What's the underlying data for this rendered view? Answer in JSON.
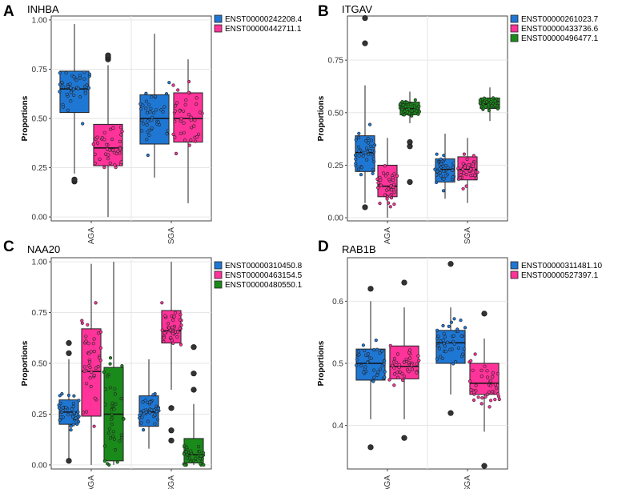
{
  "chart_data": [
    {
      "letter": "A",
      "type": "box",
      "title": "INHBA",
      "ylabel": "Proportions",
      "xlabel": "",
      "categories": [
        "AGA",
        "SGA"
      ],
      "ylim": [
        -0.02,
        1.02
      ],
      "yticks": [
        0.0,
        0.25,
        0.5,
        0.75,
        1.0
      ],
      "ytick_labels": [
        "0.00",
        "0.25",
        "0.50",
        "0.75",
        "1.00"
      ],
      "series": [
        {
          "name": "ENST00000242208.4",
          "color": "#1f77d4",
          "boxes": [
            {
              "category": "AGA",
              "q1": 0.53,
              "median": 0.65,
              "q3": 0.74,
              "whisker_low": 0.22,
              "whisker_high": 0.98,
              "outliers": [
                0.18,
                0.19
              ]
            },
            {
              "category": "SGA",
              "q1": 0.37,
              "median": 0.5,
              "q3": 0.62,
              "whisker_low": 0.2,
              "whisker_high": 0.93,
              "outliers": []
            }
          ]
        },
        {
          "name": "ENST00000442711.1",
          "color": "#ff3399",
          "boxes": [
            {
              "category": "AGA",
              "q1": 0.26,
              "median": 0.35,
              "q3": 0.47,
              "whisker_low": 0.0,
              "whisker_high": 0.77,
              "outliers": [
                0.8,
                0.81,
                0.82
              ]
            },
            {
              "category": "SGA",
              "q1": 0.38,
              "median": 0.5,
              "q3": 0.63,
              "whisker_low": 0.07,
              "whisker_high": 0.8,
              "outliers": []
            }
          ]
        }
      ]
    },
    {
      "letter": "B",
      "type": "box",
      "title": "ITGAV",
      "ylabel": "Proportions",
      "xlabel": "",
      "categories": [
        "AGA",
        "SGA"
      ],
      "ylim": [
        -0.015,
        0.96
      ],
      "yticks": [
        0.0,
        0.25,
        0.5,
        0.75
      ],
      "ytick_labels": [
        "0.00",
        "0.25",
        "0.50",
        "0.75"
      ],
      "series": [
        {
          "name": "ENST00000261023.7",
          "color": "#1f77d4",
          "boxes": [
            {
              "category": "AGA",
              "q1": 0.22,
              "median": 0.31,
              "q3": 0.39,
              "whisker_low": 0.07,
              "whisker_high": 0.63,
              "outliers": [
                0.05,
                0.83,
                0.95
              ]
            },
            {
              "category": "SGA",
              "q1": 0.17,
              "median": 0.23,
              "q3": 0.28,
              "whisker_low": 0.09,
              "whisker_high": 0.4,
              "outliers": []
            }
          ]
        },
        {
          "name": "ENST00000433736.6",
          "color": "#ff3399",
          "boxes": [
            {
              "category": "AGA",
              "q1": 0.1,
              "median": 0.15,
              "q3": 0.25,
              "whisker_low": 0.0,
              "whisker_high": 0.38,
              "outliers": []
            },
            {
              "category": "SGA",
              "q1": 0.18,
              "median": 0.23,
              "q3": 0.29,
              "whisker_low": 0.07,
              "whisker_high": 0.38,
              "outliers": []
            }
          ]
        },
        {
          "name": "ENST00000496477.1",
          "color": "#1a8a1a",
          "boxes": [
            {
              "category": "AGA",
              "q1": 0.49,
              "median": 0.52,
              "q3": 0.55,
              "whisker_low": 0.45,
              "whisker_high": 0.6,
              "outliers": [
                0.34,
                0.36,
                0.17
              ]
            },
            {
              "category": "SGA",
              "q1": 0.52,
              "median": 0.54,
              "q3": 0.57,
              "whisker_low": 0.46,
              "whisker_high": 0.62,
              "outliers": []
            }
          ]
        }
      ]
    },
    {
      "letter": "C",
      "type": "box",
      "title": "NAA20",
      "ylabel": "Proportions",
      "xlabel": "",
      "categories": [
        "AGA",
        "SGA"
      ],
      "ylim": [
        -0.02,
        1.02
      ],
      "yticks": [
        0.0,
        0.25,
        0.5,
        0.75,
        1.0
      ],
      "ytick_labels": [
        "0.00",
        "0.25",
        "0.50",
        "0.75",
        "1.00"
      ],
      "series": [
        {
          "name": "ENST00000310450.8",
          "color": "#1f77d4",
          "boxes": [
            {
              "category": "AGA",
              "q1": 0.2,
              "median": 0.26,
              "q3": 0.32,
              "whisker_low": 0.03,
              "whisker_high": 0.52,
              "outliers": [
                0.55,
                0.6,
                0.02
              ]
            },
            {
              "category": "SGA",
              "q1": 0.19,
              "median": 0.26,
              "q3": 0.34,
              "whisker_low": 0.08,
              "whisker_high": 0.52,
              "outliers": []
            }
          ]
        },
        {
          "name": "ENST00000463154.5",
          "color": "#ff3399",
          "boxes": [
            {
              "category": "AGA",
              "q1": 0.24,
              "median": 0.46,
              "q3": 0.67,
              "whisker_low": 0.0,
              "whisker_high": 0.99,
              "outliers": []
            },
            {
              "category": "SGA",
              "q1": 0.6,
              "median": 0.66,
              "q3": 0.76,
              "whisker_low": 0.37,
              "whisker_high": 1.0,
              "outliers": [
                0.12,
                0.17,
                0.28
              ]
            }
          ]
        },
        {
          "name": "ENST00000480550.1",
          "color": "#1a8a1a",
          "boxes": [
            {
              "category": "AGA",
              "q1": 0.02,
              "median": 0.25,
              "q3": 0.48,
              "whisker_low": 0.0,
              "whisker_high": 1.0,
              "outliers": []
            },
            {
              "category": "SGA",
              "q1": 0.01,
              "median": 0.05,
              "q3": 0.13,
              "whisker_low": 0.0,
              "whisker_high": 0.3,
              "outliers": [
                0.37,
                0.45,
                0.58
              ]
            }
          ]
        }
      ]
    },
    {
      "letter": "D",
      "type": "box",
      "title": "RAB1B",
      "ylabel": "Proportions",
      "xlabel": "",
      "categories": [
        "AGA",
        "SGA"
      ],
      "ylim": [
        0.33,
        0.67
      ],
      "yticks": [
        0.4,
        0.5,
        0.6
      ],
      "ytick_labels": [
        "0.4",
        "0.5",
        "0.6"
      ],
      "series": [
        {
          "name": "ENST00000311481.10",
          "color": "#1f77d4",
          "boxes": [
            {
              "category": "AGA",
              "q1": 0.473,
              "median": 0.5,
              "q3": 0.523,
              "whisker_low": 0.41,
              "whisker_high": 0.6,
              "outliers": [
                0.365,
                0.62
              ]
            },
            {
              "category": "SGA",
              "q1": 0.5,
              "median": 0.533,
              "q3": 0.553,
              "whisker_low": 0.45,
              "whisker_high": 0.59,
              "outliers": [
                0.42,
                0.66
              ]
            }
          ]
        },
        {
          "name": "ENST00000527397.1",
          "color": "#ff3399",
          "boxes": [
            {
              "category": "AGA",
              "q1": 0.475,
              "median": 0.495,
              "q3": 0.528,
              "whisker_low": 0.41,
              "whisker_high": 0.59,
              "outliers": [
                0.38,
                0.63
              ]
            },
            {
              "category": "SGA",
              "q1": 0.45,
              "median": 0.468,
              "q3": 0.5,
              "whisker_low": 0.39,
              "whisker_high": 0.54,
              "outliers": [
                0.335,
                0.58
              ]
            }
          ]
        }
      ]
    }
  ]
}
